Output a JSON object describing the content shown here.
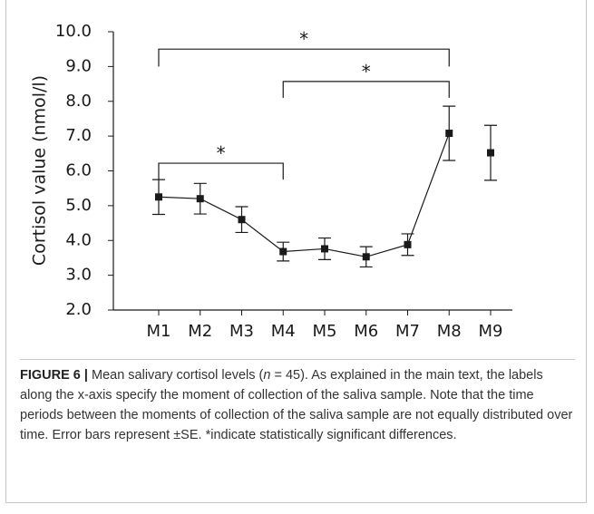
{
  "chart_data": {
    "type": "line",
    "y_label": "Cortisol value (nmol/l)",
    "categories": [
      "M1",
      "M2",
      "M3",
      "M4",
      "M5",
      "M6",
      "M7",
      "M8",
      "M9"
    ],
    "series": [
      {
        "color": "#1a1a1a",
        "values": [
          5.25,
          5.2,
          4.6,
          3.68,
          3.76,
          3.53,
          3.88,
          7.08,
          6.52
        ],
        "errors": [
          0.5,
          0.44,
          0.37,
          0.27,
          0.31,
          0.29,
          0.31,
          0.78,
          0.79
        ],
        "connect_last": false
      }
    ],
    "ylim": [
      2.0,
      10.0
    ],
    "yticks": [
      {
        "value": 2,
        "label": "2.0"
      },
      {
        "value": 3,
        "label": "3.0"
      },
      {
        "value": 4,
        "label": "4.0"
      },
      {
        "value": 5,
        "label": "5.0"
      },
      {
        "value": 6,
        "label": "6.0"
      },
      {
        "value": 7,
        "label": "7.0"
      },
      {
        "value": 8,
        "label": "8.0"
      },
      {
        "value": 9,
        "label": "9.0"
      },
      {
        "value": 10,
        "label": "10.0"
      }
    ],
    "grid": false,
    "annotations": [
      {
        "text": "*",
        "from": 0,
        "to": 7,
        "y": 9.5,
        "end": 9.0
      },
      {
        "text": "*",
        "from": 3,
        "to": 7,
        "y": 8.57,
        "end": 8.1
      },
      {
        "text": "*",
        "from": 0,
        "to": 3,
        "y": 6.22,
        "end": 5.75
      }
    ]
  },
  "caption": {
    "label": "FIGURE 6 |",
    "text_before": " Mean salivary cortisol levels (",
    "italic": "n",
    "text_after": " = 45). As explained in the main text, the labels along the x-axis specify the moment of collection of the saliva sample. Note that the time periods between the moments of collection of the saliva sample are not equally distributed over time. Error bars represent ±SE. *indicate statistically significant differences."
  }
}
